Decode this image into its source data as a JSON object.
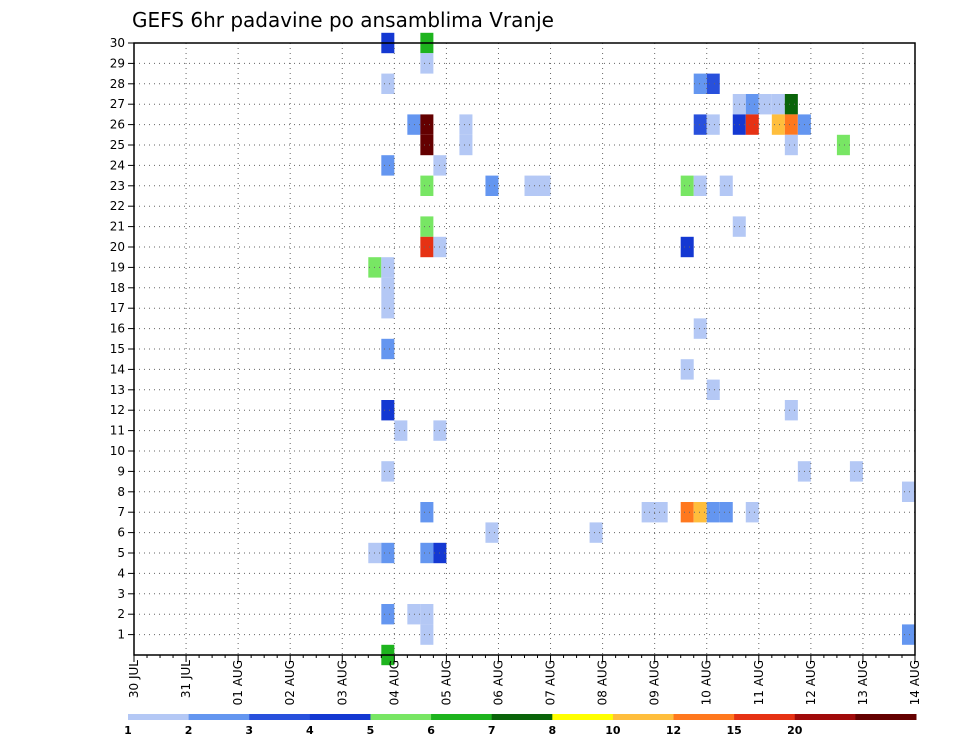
{
  "chart_data": {
    "type": "heatmap",
    "title": "GEFS 6hr padavine po ansamblima Vranje",
    "x_tick_labels": [
      "30 JUL",
      "31 JUL",
      "01 AUG",
      "02 AUG",
      "03 AUG",
      "04 AUG",
      "05 AUG",
      "06 AUG",
      "07 AUG",
      "08 AUG",
      "09 AUG",
      "10 AUG",
      "11 AUG",
      "12 AUG",
      "13 AUG",
      "14 AUG"
    ],
    "x_range_days": [
      0,
      15
    ],
    "y_tick_labels": [
      "1",
      "2",
      "3",
      "4",
      "5",
      "6",
      "7",
      "8",
      "9",
      "10",
      "11",
      "12",
      "13",
      "14",
      "15",
      "16",
      "17",
      "18",
      "19",
      "20",
      "21",
      "22",
      "23",
      "24",
      "25",
      "26",
      "27",
      "28",
      "29",
      "30"
    ],
    "y_range": [
      0,
      30
    ],
    "grid": true,
    "colorbar": {
      "labels": [
        "1",
        "2",
        "3",
        "4",
        "5",
        "6",
        "7",
        "8",
        "10",
        "12",
        "15",
        "20"
      ],
      "colors": [
        "#b4c8f5",
        "#6496f0",
        "#2850dc",
        "#1438d2",
        "#78e664",
        "#1eb41e",
        "#0a640a",
        "#ffff00",
        "#ffbe3c",
        "#ff781e",
        "#e63214",
        "#a00a0a",
        "#640000"
      ]
    },
    "cells": [
      {
        "t": 4.875,
        "m": 30,
        "c": 3
      },
      {
        "t": 5.625,
        "m": 30,
        "c": 5
      },
      {
        "t": 5.625,
        "m": 29,
        "c": 0
      },
      {
        "t": 4.875,
        "m": 28,
        "c": 0
      },
      {
        "t": 10.875,
        "m": 28,
        "c": 1
      },
      {
        "t": 11.125,
        "m": 28,
        "c": 2
      },
      {
        "t": 11.625,
        "m": 27,
        "c": 0
      },
      {
        "t": 11.875,
        "m": 27,
        "c": 1
      },
      {
        "t": 12.125,
        "m": 27,
        "c": 0
      },
      {
        "t": 12.375,
        "m": 27,
        "c": 0
      },
      {
        "t": 12.625,
        "m": 27,
        "c": 6
      },
      {
        "t": 5.375,
        "m": 26,
        "c": 1
      },
      {
        "t": 5.625,
        "m": 26,
        "c": 12
      },
      {
        "t": 6.375,
        "m": 26,
        "c": 0
      },
      {
        "t": 10.875,
        "m": 26,
        "c": 2
      },
      {
        "t": 11.125,
        "m": 26,
        "c": 0
      },
      {
        "t": 11.625,
        "m": 26,
        "c": 3
      },
      {
        "t": 11.875,
        "m": 26,
        "c": 10
      },
      {
        "t": 12.375,
        "m": 26,
        "c": 8
      },
      {
        "t": 12.625,
        "m": 26,
        "c": 9
      },
      {
        "t": 12.875,
        "m": 26,
        "c": 1
      },
      {
        "t": 5.625,
        "m": 25,
        "c": 12
      },
      {
        "t": 6.375,
        "m": 25,
        "c": 0
      },
      {
        "t": 12.625,
        "m": 25,
        "c": 0
      },
      {
        "t": 13.625,
        "m": 25,
        "c": 4
      },
      {
        "t": 4.875,
        "m": 24,
        "c": 1
      },
      {
        "t": 5.875,
        "m": 24,
        "c": 0
      },
      {
        "t": 5.625,
        "m": 23,
        "c": 4
      },
      {
        "t": 6.875,
        "m": 23,
        "c": 1
      },
      {
        "t": 7.625,
        "m": 23,
        "c": 0
      },
      {
        "t": 7.875,
        "m": 23,
        "c": 0
      },
      {
        "t": 10.625,
        "m": 23,
        "c": 4
      },
      {
        "t": 10.875,
        "m": 23,
        "c": 0
      },
      {
        "t": 11.375,
        "m": 23,
        "c": 0
      },
      {
        "t": 5.625,
        "m": 21,
        "c": 4
      },
      {
        "t": 11.625,
        "m": 21,
        "c": 0
      },
      {
        "t": 5.625,
        "m": 20,
        "c": 10
      },
      {
        "t": 5.875,
        "m": 20,
        "c": 0
      },
      {
        "t": 10.625,
        "m": 20,
        "c": 3
      },
      {
        "t": 4.625,
        "m": 19,
        "c": 4
      },
      {
        "t": 4.875,
        "m": 19,
        "c": 0
      },
      {
        "t": 4.875,
        "m": 18,
        "c": 0
      },
      {
        "t": 4.875,
        "m": 17,
        "c": 0
      },
      {
        "t": 10.875,
        "m": 16,
        "c": 0
      },
      {
        "t": 4.875,
        "m": 15,
        "c": 1
      },
      {
        "t": 10.625,
        "m": 14,
        "c": 0
      },
      {
        "t": 11.125,
        "m": 13,
        "c": 0
      },
      {
        "t": 4.875,
        "m": 12,
        "c": 3
      },
      {
        "t": 12.625,
        "m": 12,
        "c": 0
      },
      {
        "t": 5.125,
        "m": 11,
        "c": 0
      },
      {
        "t": 5.875,
        "m": 11,
        "c": 0
      },
      {
        "t": 4.875,
        "m": 9,
        "c": 0
      },
      {
        "t": 12.875,
        "m": 9,
        "c": 0
      },
      {
        "t": 13.875,
        "m": 9,
        "c": 0
      },
      {
        "t": 14.875,
        "m": 8,
        "c": 0
      },
      {
        "t": 5.625,
        "m": 7,
        "c": 1
      },
      {
        "t": 9.875,
        "m": 7,
        "c": 0
      },
      {
        "t": 10.125,
        "m": 7,
        "c": 0
      },
      {
        "t": 10.625,
        "m": 7,
        "c": 9
      },
      {
        "t": 10.875,
        "m": 7,
        "c": 8
      },
      {
        "t": 11.125,
        "m": 7,
        "c": 1
      },
      {
        "t": 11.375,
        "m": 7,
        "c": 1
      },
      {
        "t": 11.875,
        "m": 7,
        "c": 0
      },
      {
        "t": 6.875,
        "m": 6,
        "c": 0
      },
      {
        "t": 8.875,
        "m": 6,
        "c": 0
      },
      {
        "t": 4.625,
        "m": 5,
        "c": 0
      },
      {
        "t": 4.875,
        "m": 5,
        "c": 1
      },
      {
        "t": 5.625,
        "m": 5,
        "c": 1
      },
      {
        "t": 5.875,
        "m": 5,
        "c": 3
      },
      {
        "t": 4.875,
        "m": 2,
        "c": 1
      },
      {
        "t": 5.375,
        "m": 2,
        "c": 0
      },
      {
        "t": 5.625,
        "m": 2,
        "c": 0
      },
      {
        "t": 5.625,
        "m": 1,
        "c": 0
      },
      {
        "t": 14.875,
        "m": 1,
        "c": 1
      },
      {
        "t": 4.875,
        "m": 0,
        "c": 5
      }
    ]
  }
}
